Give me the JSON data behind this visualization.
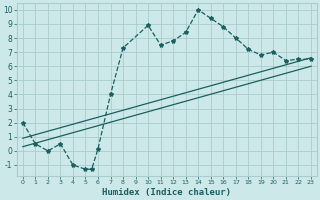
{
  "xlabel": "Humidex (Indice chaleur)",
  "bg_color": "#cce8e8",
  "grid_color": "#aacccc",
  "line_color": "#1a6060",
  "xlim": [
    -0.5,
    23.5
  ],
  "ylim": [
    -1.8,
    10.5
  ],
  "xticks": [
    0,
    1,
    2,
    3,
    4,
    5,
    6,
    7,
    8,
    9,
    10,
    11,
    12,
    13,
    14,
    15,
    16,
    17,
    18,
    19,
    20,
    21,
    22,
    23
  ],
  "yticks": [
    -1,
    0,
    1,
    2,
    3,
    4,
    5,
    6,
    7,
    8,
    9,
    10
  ],
  "wavy_x": [
    0,
    1,
    2,
    3,
    4,
    5,
    5.5,
    6,
    7,
    8,
    10,
    11,
    12,
    13,
    14,
    15,
    16,
    17,
    18,
    19,
    20,
    21,
    22,
    23
  ],
  "wavy_y": [
    2.0,
    0.5,
    0.0,
    0.5,
    -1.0,
    -1.3,
    -1.3,
    0.15,
    4.0,
    7.3,
    8.9,
    7.5,
    7.8,
    8.4,
    10.0,
    9.4,
    8.8,
    8.0,
    7.2,
    6.8,
    7.0,
    6.4,
    6.5,
    6.5
  ],
  "trend1_x": [
    0,
    23
  ],
  "trend1_y": [
    0.9,
    6.6
  ],
  "trend2_x": [
    0,
    23
  ],
  "trend2_y": [
    0.3,
    6.0
  ]
}
